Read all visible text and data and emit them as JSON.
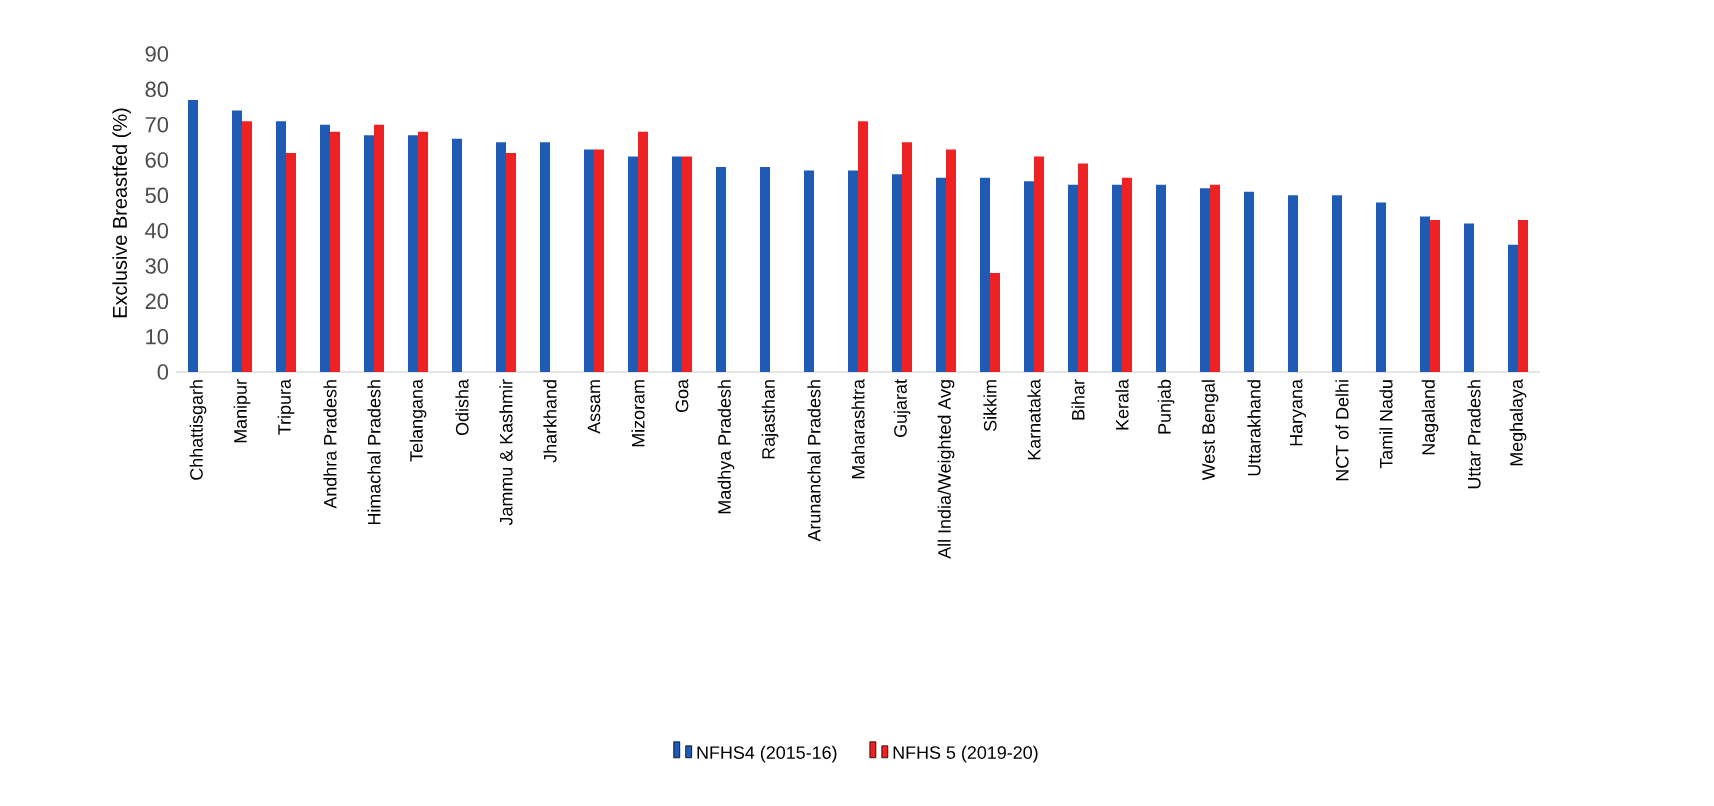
{
  "chart_data": {
    "type": "bar",
    "ylabel": "Exclusive Breastfed (%)",
    "categories": [
      "Chhattisgarh",
      "Manipur",
      "Tripura",
      "Andhra Pradesh",
      "Himachal Pradesh",
      "Telangana",
      "Odisha",
      "Jammu & Kashmir",
      "Jharkhand",
      "Assam",
      "Mizoram",
      "Goa",
      "Madhya Pradesh",
      "Rajasthan",
      "Arunanchal Pradesh",
      "Maharashtra",
      "Gujarat",
      "All India/Weighted Avg",
      "Sikkim",
      "Karnataka",
      "Bihar",
      "Kerala",
      "Punjab",
      "West Bengal",
      "Uttarakhand",
      "Haryana",
      "NCT of Delhi",
      "Tamil Nadu",
      "Nagaland",
      "Uttar Pradesh",
      "Meghalaya"
    ],
    "series": [
      {
        "name": "NFHS4 (2015-16)",
        "color": "#1f5bb5",
        "values": [
          77,
          74,
          71,
          70,
          67,
          67,
          66,
          65,
          65,
          63,
          61,
          61,
          58,
          58,
          57,
          57,
          56,
          55,
          55,
          54,
          53,
          53,
          53,
          52,
          51,
          50,
          50,
          48,
          44,
          42,
          36
        ]
      },
      {
        "name": "NFHS 5 (2019-20)",
        "color": "#ee2222",
        "values": [
          null,
          71,
          62,
          68,
          70,
          68,
          null,
          62,
          null,
          63,
          68,
          61,
          null,
          null,
          null,
          71,
          65,
          63,
          28,
          61,
          59,
          55,
          null,
          53,
          null,
          null,
          null,
          null,
          43,
          null,
          43
        ]
      }
    ],
    "ylim": [
      0,
      90
    ],
    "yticks": [
      0,
      10,
      20,
      30,
      40,
      50,
      60,
      70,
      80,
      90
    ],
    "legend": "bottom"
  }
}
